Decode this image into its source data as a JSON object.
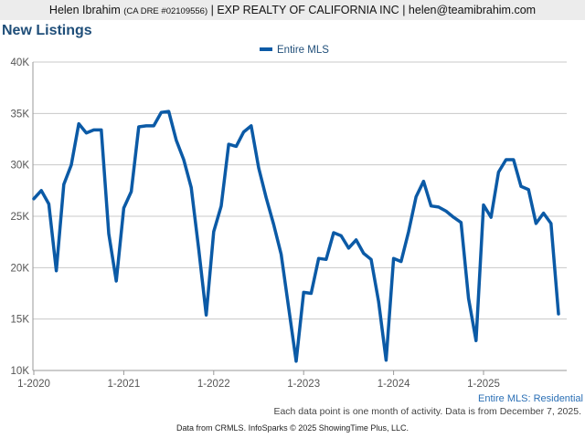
{
  "header": {
    "agent_name": "Helen Ibrahim",
    "license": "(CA DRE #02109556)",
    "separator1": "|",
    "brokerage": "EXP REALTY OF CALIFORNIA INC",
    "separator2": "|",
    "email": "helen@teamibrahim.com"
  },
  "title": "New Listings",
  "footer": {
    "note": "Each data point is one month of activity. Data is from December 7, 2025.",
    "source": "Data from CRMLS. InfoSparks © 2025 ShowingTime Plus, LLC."
  },
  "colors": {
    "series": "#0b5aa6",
    "grid": "#c8c8c8",
    "axis_text": "#555555",
    "title": "#1f4e79"
  },
  "chart_data": {
    "type": "line",
    "title": "New Listings",
    "series_label_lower_right": "Entire MLS: Residential",
    "ylim": [
      10000,
      40000
    ],
    "y_ticks": [
      10000,
      15000,
      20000,
      25000,
      30000,
      35000,
      40000
    ],
    "y_tick_labels": [
      "10K",
      "15K",
      "20K",
      "25K",
      "30K",
      "35K",
      "40K"
    ],
    "x_tick_labels": [
      "1-2020",
      "1-2021",
      "1-2022",
      "1-2023",
      "1-2024",
      "1-2025"
    ],
    "grid": true,
    "legend_position": "top-center",
    "series": [
      {
        "name": "Entire MLS",
        "color": "#0b5aa6",
        "x": [
          "2020-01",
          "2020-02",
          "2020-03",
          "2020-04",
          "2020-05",
          "2020-06",
          "2020-07",
          "2020-08",
          "2020-09",
          "2020-10",
          "2020-11",
          "2020-12",
          "2021-01",
          "2021-02",
          "2021-03",
          "2021-04",
          "2021-05",
          "2021-06",
          "2021-07",
          "2021-08",
          "2021-09",
          "2021-10",
          "2021-11",
          "2021-12",
          "2022-01",
          "2022-02",
          "2022-03",
          "2022-04",
          "2022-05",
          "2022-06",
          "2022-07",
          "2022-08",
          "2022-09",
          "2022-10",
          "2022-11",
          "2022-12",
          "2023-01",
          "2023-02",
          "2023-03",
          "2023-04",
          "2023-05",
          "2023-06",
          "2023-07",
          "2023-08",
          "2023-09",
          "2023-10",
          "2023-11",
          "2023-12",
          "2024-01",
          "2024-02",
          "2024-03",
          "2024-04",
          "2024-05",
          "2024-06",
          "2024-07",
          "2024-08",
          "2024-09",
          "2024-10",
          "2024-11",
          "2024-12",
          "2025-01",
          "2025-02",
          "2025-03",
          "2025-04",
          "2025-05",
          "2025-06",
          "2025-07",
          "2025-08",
          "2025-09",
          "2025-10",
          "2025-11"
        ],
        "values": [
          26700,
          27500,
          26200,
          19700,
          28100,
          30000,
          34000,
          33100,
          33400,
          33400,
          23300,
          18700,
          25800,
          27400,
          33700,
          33800,
          33800,
          35100,
          35200,
          32400,
          30500,
          27800,
          21800,
          15400,
          23500,
          26000,
          32000,
          31800,
          33200,
          33800,
          29700,
          26800,
          24200,
          21300,
          16100,
          10900,
          17600,
          17500,
          20900,
          20800,
          23400,
          23100,
          21900,
          22700,
          21400,
          20800,
          16700,
          11000,
          20900,
          20600,
          23500,
          26900,
          28400,
          26000,
          25900,
          25500,
          24900,
          24400,
          17000,
          12900,
          26100,
          24900,
          29300,
          30500,
          30500,
          27900,
          27600,
          24300,
          25300,
          24300,
          15500
        ]
      }
    ]
  }
}
